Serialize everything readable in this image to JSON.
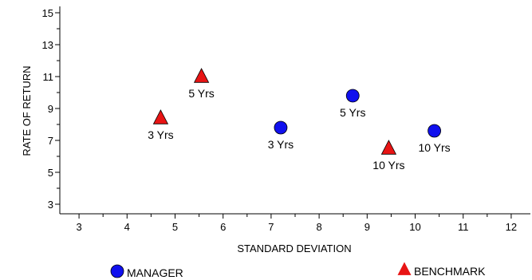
{
  "chart_data": {
    "type": "scatter",
    "title": "",
    "xlabel": "STANDARD DEVIATION",
    "ylabel": "RATE OF RETURN",
    "xlim": [
      2.6,
      12.4
    ],
    "ylim": [
      2.4,
      15.4
    ],
    "x_ticks": [
      3,
      4,
      5,
      6,
      7,
      8,
      9,
      10,
      11,
      12
    ],
    "y_ticks": [
      3,
      5,
      7,
      9,
      11,
      13,
      15
    ],
    "grid": false,
    "legend_position": "bottom",
    "series": [
      {
        "name": "MANAGER",
        "marker": "circle",
        "color": "#1010ee",
        "points": [
          {
            "x": 7.2,
            "y": 7.8,
            "label": "3 Yrs"
          },
          {
            "x": 8.7,
            "y": 9.8,
            "label": "5 Yrs"
          },
          {
            "x": 10.4,
            "y": 7.6,
            "label": "10 Yrs"
          }
        ]
      },
      {
        "name": "BENCHMARK",
        "marker": "triangle",
        "color": "#e81414",
        "points": [
          {
            "x": 4.7,
            "y": 8.4,
            "label": "3 Yrs"
          },
          {
            "x": 5.55,
            "y": 11.0,
            "label": "5 Yrs"
          },
          {
            "x": 9.45,
            "y": 6.5,
            "label": "10 Yrs"
          }
        ]
      }
    ]
  }
}
